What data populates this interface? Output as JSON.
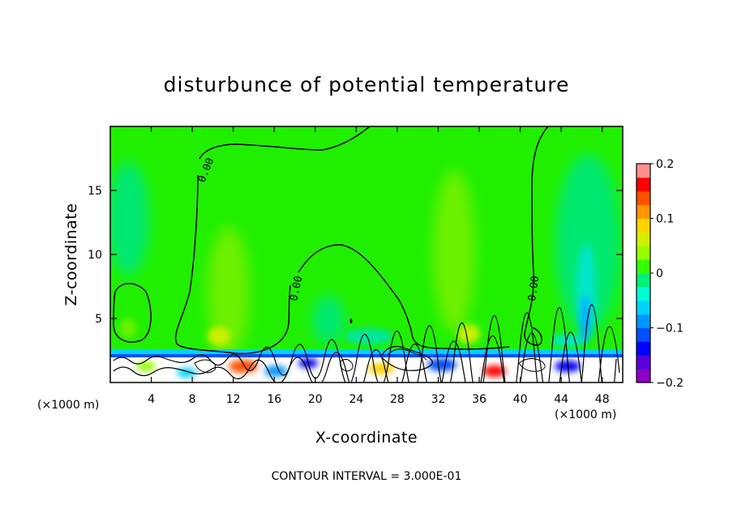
{
  "chart_data": {
    "type": "heatmap",
    "title": "disturbunce of potential temperature",
    "xlabel": "X-coordinate",
    "ylabel": "Z-coordinate",
    "x_units_left": "(×1000 m)",
    "x_units_right": "(×1000 m)",
    "xlim": [
      0,
      50
    ],
    "ylim": [
      0,
      20
    ],
    "x_ticks": [
      4,
      8,
      12,
      16,
      20,
      24,
      28,
      32,
      36,
      40,
      44,
      48
    ],
    "x_tick_labels": [
      "4",
      "8",
      "12",
      "16",
      "20",
      "24",
      "28",
      "32",
      "36",
      "40",
      "44",
      "48"
    ],
    "y_ticks": [
      5,
      10,
      15
    ],
    "y_tick_labels": [
      "5",
      "10",
      "15"
    ],
    "colorbar": {
      "min": -0.2,
      "max": 0.2,
      "levels": 16,
      "tick_values": [
        0.2,
        0.1,
        0,
        -0.1,
        -0.2
      ],
      "tick_labels": [
        "0.2",
        "0.1",
        "0",
        "−0.1",
        "−0.2"
      ],
      "colors": [
        "#8c00c8",
        "#5a00dc",
        "#0000ff",
        "#0050ff",
        "#0096ff",
        "#00d2ff",
        "#00ffd2",
        "#00f078",
        "#32ff00",
        "#96ff00",
        "#d2f000",
        "#ffd200",
        "#ff9600",
        "#ff5000",
        "#ff0000",
        "#ff9090"
      ]
    },
    "contour_labels": [
      "0.00",
      "0.00",
      "0.00"
    ],
    "contour_interval_text": "CONTOUR INTERVAL = 3.000E-01"
  }
}
